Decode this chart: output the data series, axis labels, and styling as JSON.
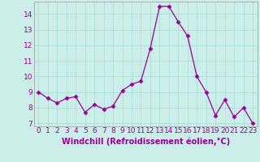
{
  "x": [
    0,
    1,
    2,
    3,
    4,
    5,
    6,
    7,
    8,
    9,
    10,
    11,
    12,
    13,
    14,
    15,
    16,
    17,
    18,
    19,
    20,
    21,
    22,
    23
  ],
  "y": [
    9.0,
    8.6,
    8.3,
    8.6,
    8.7,
    7.7,
    8.2,
    7.9,
    8.1,
    9.1,
    9.5,
    9.7,
    11.8,
    14.5,
    14.5,
    13.5,
    12.6,
    10.0,
    9.0,
    7.5,
    8.5,
    7.4,
    8.0,
    7.0
  ],
  "line_color": "#990099",
  "marker": "D",
  "marker_size": 2.5,
  "bg_color": "#cceee8",
  "grid_color": "#aadddd",
  "xlabel": "Windchill (Refroidissement éolien,°C)",
  "xlabel_color": "#990099",
  "tick_color": "#990099",
  "ylim": [
    6.8,
    14.8
  ],
  "xlim": [
    -0.5,
    23.5
  ],
  "yticks": [
    7,
    8,
    9,
    10,
    11,
    12,
    13,
    14
  ],
  "xticks": [
    0,
    1,
    2,
    3,
    4,
    5,
    6,
    7,
    8,
    9,
    10,
    11,
    12,
    13,
    14,
    15,
    16,
    17,
    18,
    19,
    20,
    21,
    22,
    23
  ],
  "spine_color": "#999999",
  "font_size": 6.5,
  "xlabel_fontsize": 7.0
}
